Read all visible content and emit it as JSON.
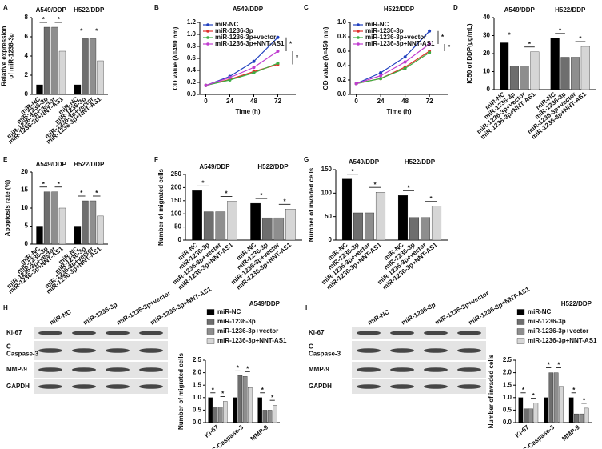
{
  "chart_data": [
    {
      "type": "bar",
      "label": "A",
      "categories": [
        "A549/DDP",
        "H522/DDP"
      ],
      "ylabel": [
        "Relative expression",
        "of miR-1236-3p"
      ],
      "ylim": [
        0,
        8
      ],
      "yticks": [
        0,
        2,
        4,
        6,
        8
      ],
      "annotations": [
        "*",
        "*",
        "*",
        "*"
      ],
      "series": [
        {
          "name": "miR-NC",
          "color": "#000000",
          "values": [
            1,
            1
          ]
        },
        {
          "name": "miR-1236-3p",
          "color": "#6e6e6e",
          "values": [
            7.0,
            5.8
          ]
        },
        {
          "name": "miR-1236-3p+vector",
          "color": "#8e8e8e",
          "values": [
            7.0,
            5.8
          ]
        },
        {
          "name": "miR-1236-3p+NNT-AS1",
          "color": "#d6d6d6",
          "values": [
            4.5,
            3.5
          ]
        }
      ]
    },
    {
      "type": "line",
      "label": "B",
      "title": "A549/DDP",
      "xlabel": "Time (h)",
      "ylabel": "OD value (λ=490 nm)",
      "x": [
        0,
        24,
        48,
        72
      ],
      "xlim": [
        -6,
        90
      ],
      "xticks": [
        0,
        24,
        48,
        72
      ],
      "ylim": [
        0,
        1.2
      ],
      "yticks": [
        {
          "value": 0,
          "label": "0.0"
        },
        0.2,
        0.4,
        0.6,
        0.8,
        {
          "value": 1,
          "label": "1.0"
        },
        1.2
      ],
      "legend": "upper left",
      "annotations": [
        "*",
        "*"
      ],
      "series": [
        {
          "name": "miR-NC",
          "color": "#1f3fbf",
          "values": [
            0.15,
            0.3,
            0.55,
            0.95
          ]
        },
        {
          "name": "miR-1236-3p",
          "color": "#e0302a",
          "values": [
            0.15,
            0.25,
            0.38,
            0.5
          ]
        },
        {
          "name": "miR-1236-3p+vector",
          "color": "#3cb043",
          "values": [
            0.15,
            0.24,
            0.36,
            0.52
          ]
        },
        {
          "name": "miR-1236-3p+NNT-AS1",
          "color": "#c03cd0",
          "values": [
            0.15,
            0.28,
            0.45,
            0.72
          ]
        }
      ]
    },
    {
      "type": "line",
      "label": "C",
      "title": "H522/DDP",
      "xlabel": "Time (h)",
      "ylabel": "OD value (λ=450 nm)",
      "x": [
        0,
        24,
        48,
        72
      ],
      "xlim": [
        -6,
        90
      ],
      "xticks": [
        0,
        24,
        48,
        72
      ],
      "ylim": [
        0,
        1
      ],
      "yticks": [
        {
          "value": 0,
          "label": "0.0"
        },
        0.2,
        0.4,
        0.6,
        0.8,
        {
          "value": 1,
          "label": "1.0"
        }
      ],
      "legend": "upper left",
      "annotations": [
        "*",
        "*"
      ],
      "series": [
        {
          "name": "miR-NC",
          "color": "#1f3fbf",
          "values": [
            0.15,
            0.3,
            0.52,
            0.88
          ]
        },
        {
          "name": "miR-1236-3p",
          "color": "#e0302a",
          "values": [
            0.15,
            0.22,
            0.38,
            0.6
          ]
        },
        {
          "name": "miR-1236-3p+vector",
          "color": "#3cb043",
          "values": [
            0.15,
            0.22,
            0.36,
            0.58
          ]
        },
        {
          "name": "miR-1236-3p+NNT-AS1",
          "color": "#c03cd0",
          "values": [
            0.15,
            0.26,
            0.45,
            0.7
          ]
        }
      ]
    },
    {
      "type": "bar",
      "label": "D",
      "categories": [
        "A549/DDP",
        "H522/DDP"
      ],
      "ylabel": "IC50 of DDP(μg/mL)",
      "ylim": [
        0,
        40
      ],
      "yticks": [
        0,
        10,
        20,
        30,
        40
      ],
      "annotations": [
        "*",
        "*",
        "*",
        "*"
      ],
      "series": [
        {
          "name": "miR-NC",
          "color": "#000000",
          "values": [
            26,
            28.5
          ]
        },
        {
          "name": "miR-1236-3p",
          "color": "#6e6e6e",
          "values": [
            13,
            18
          ]
        },
        {
          "name": "miR-1236-3p+vector",
          "color": "#8e8e8e",
          "values": [
            13,
            18
          ]
        },
        {
          "name": "miR-1236-3p+NNT-AS1",
          "color": "#d6d6d6",
          "values": [
            21,
            24
          ]
        }
      ]
    },
    {
      "type": "bar",
      "label": "E",
      "categories": [
        "A549/DDP",
        "H522/DDP"
      ],
      "ylabel": "Apoptosis rate (%)",
      "ylim": [
        0,
        20
      ],
      "yticks": [
        0,
        5,
        10,
        15,
        20
      ],
      "annotations": [
        "*",
        "*",
        "*",
        "*"
      ],
      "series": [
        {
          "name": "miR-NC",
          "color": "#000000",
          "values": [
            5,
            5
          ]
        },
        {
          "name": "miR-1236-3p",
          "color": "#6e6e6e",
          "values": [
            14.5,
            12
          ]
        },
        {
          "name": "miR-1236-3p+vector",
          "color": "#8e8e8e",
          "values": [
            14.5,
            12
          ]
        },
        {
          "name": "miR-1236-3p+NNT-AS1",
          "color": "#d6d6d6",
          "values": [
            10,
            7.8
          ]
        }
      ]
    },
    {
      "type": "bar",
      "label": "F",
      "categories": [
        "A549/DDP",
        "H522/DDP"
      ],
      "ylabel": "Number of migrated cells",
      "ylim": [
        0,
        250
      ],
      "yticks": [
        0,
        50,
        100,
        150,
        200,
        250
      ],
      "annotations": [
        "*",
        "*",
        "*",
        "*"
      ],
      "series": [
        {
          "name": "miR-NC",
          "color": "#000000",
          "values": [
            188,
            140
          ]
        },
        {
          "name": "miR-1236-3p",
          "color": "#6e6e6e",
          "values": [
            108,
            85
          ]
        },
        {
          "name": "miR-1236-3p+vector",
          "color": "#8e8e8e",
          "values": [
            108,
            85
          ]
        },
        {
          "name": "miR-1236-3p+NNT-AS1",
          "color": "#d6d6d6",
          "values": [
            148,
            118
          ]
        }
      ]
    },
    {
      "type": "bar",
      "label": "G",
      "categories": [
        "A549/DDP",
        "H522/DDP"
      ],
      "ylabel": "Number of invaded cells",
      "ylim": [
        0,
        150
      ],
      "yticks": [
        0,
        50,
        100,
        150
      ],
      "annotations": [
        "*",
        "*",
        "*",
        "*"
      ],
      "series": [
        {
          "name": "miR-NC",
          "color": "#000000",
          "values": [
            130,
            95
          ]
        },
        {
          "name": "miR-1236-3p",
          "color": "#6e6e6e",
          "values": [
            58,
            48
          ]
        },
        {
          "name": "miR-1236-3p+vector",
          "color": "#8e8e8e",
          "values": [
            58,
            48
          ]
        },
        {
          "name": "miR-1236-3p+NNT-AS1",
          "color": "#d6d6d6",
          "values": [
            102,
            72
          ]
        }
      ]
    },
    {
      "type": "bar",
      "label": "H",
      "title": "A549/DDP",
      "categories": [
        "Ki-67",
        "C-Caspase-3",
        "MMP-9"
      ],
      "ylabel": "Number of migrated cells",
      "ylim": [
        0,
        2.5
      ],
      "yticks": [
        {
          "value": 0,
          "label": "0.0"
        },
        0.5,
        {
          "value": 1,
          "label": "1.0"
        },
        1.5,
        {
          "value": 2,
          "label": "2.0"
        },
        2.5
      ],
      "legend": "top",
      "annotations": [
        "*",
        "*",
        "*",
        "*",
        "*",
        "*"
      ],
      "series": [
        {
          "name": "miR-NC",
          "color": "#000000",
          "values": [
            1,
            1,
            1
          ]
        },
        {
          "name": "miR-1236-3p",
          "color": "#6e6e6e",
          "values": [
            0.62,
            1.88,
            0.5
          ]
        },
        {
          "name": "miR-1236-3p+vector",
          "color": "#8e8e8e",
          "values": [
            0.62,
            1.85,
            0.5
          ]
        },
        {
          "name": "miR-1236-3p+NNT-AS1",
          "color": "#d6d6d6",
          "values": [
            0.85,
            1.4,
            0.7
          ]
        }
      ]
    },
    {
      "type": "bar",
      "label": "I",
      "title": "H522/DDP",
      "categories": [
        "Ki-67",
        "C-Caspase-3",
        "MMP-9"
      ],
      "ylabel": "Number of invaded cells",
      "ylim": [
        0,
        2.5
      ],
      "yticks": [
        {
          "value": 0,
          "label": "0.0"
        },
        0.5,
        {
          "value": 1,
          "label": "1.0"
        },
        1.5,
        {
          "value": 2,
          "label": "2.0"
        },
        2.5
      ],
      "legend": "top",
      "annotations": [
        "*",
        "*",
        "*",
        "*",
        "*",
        "*"
      ],
      "series": [
        {
          "name": "miR-NC",
          "color": "#000000",
          "values": [
            1,
            1,
            1
          ]
        },
        {
          "name": "miR-1236-3p",
          "color": "#6e6e6e",
          "values": [
            0.55,
            2.0,
            0.35
          ]
        },
        {
          "name": "miR-1236-3p+vector",
          "color": "#8e8e8e",
          "values": [
            0.55,
            2.0,
            0.35
          ]
        },
        {
          "name": "miR-1236-3p+NNT-AS1",
          "color": "#d6d6d6",
          "values": [
            0.78,
            1.45,
            0.58
          ]
        }
      ]
    }
  ],
  "blots": [
    {
      "lanes": [
        "miR-NC",
        "miR-1236-3p",
        "miR-1236-3p+vector",
        "miR-1236-3p+NNT-AS1"
      ],
      "rows": [
        "Ki-67",
        [
          "C-",
          "Caspase-3"
        ],
        "MMP-9",
        "GAPDH"
      ]
    },
    {
      "lanes": [
        "miR-NC",
        "miR-1236-3p",
        "miR-1236-3p+vector",
        "miR-1236-3p+NNT-AS1"
      ],
      "rows": [
        "Ki-67",
        [
          "C-",
          "Caspase-3"
        ],
        "MMP-9",
        "GAPDH"
      ]
    }
  ]
}
